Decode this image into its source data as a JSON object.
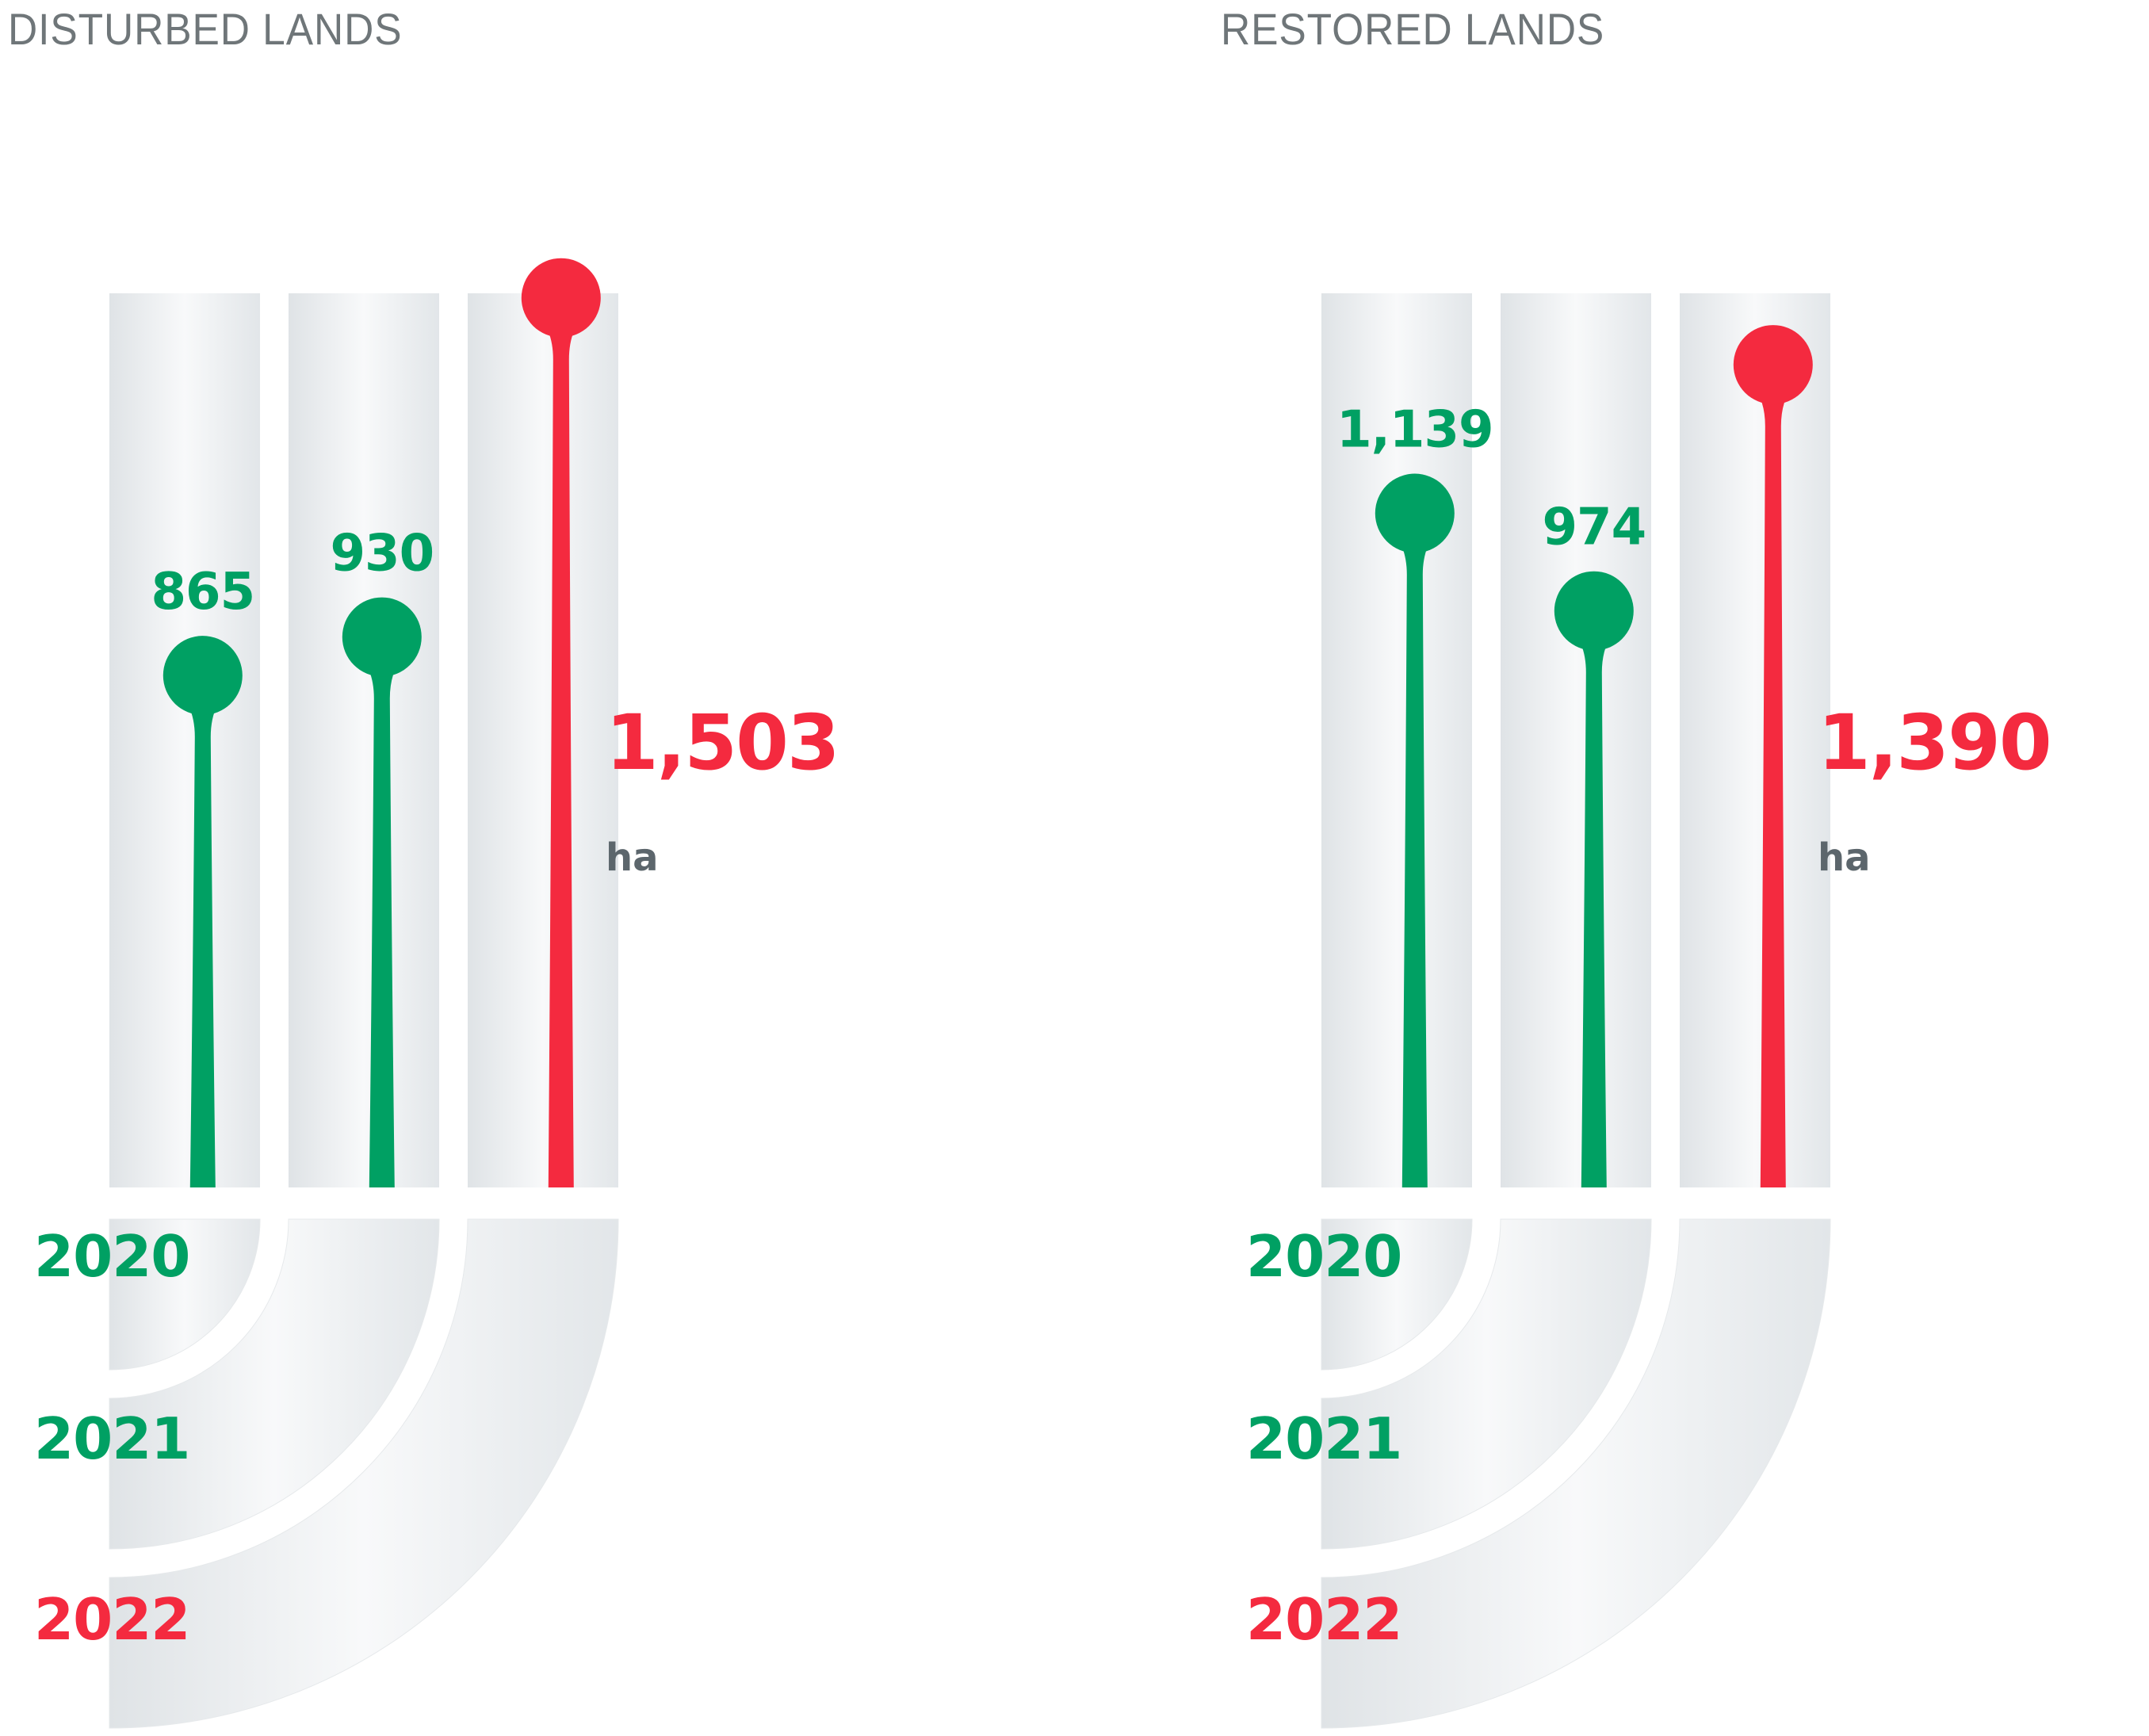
{
  "colors": {
    "green": "#00a063",
    "red": "#f42a3f",
    "title": "#6f7679",
    "unit": "#5c666c",
    "track_light": "#f7f8f9",
    "track_dark": "#dfe3e6"
  },
  "chart_data": [
    {
      "type": "bar",
      "style": "lollipop",
      "title": "DISTURBED LANDS",
      "categories": [
        "2020",
        "2021",
        "2022"
      ],
      "values": [
        865,
        930,
        1503
      ],
      "value_labels": [
        "865",
        "930",
        "1,503"
      ],
      "unit": "ha",
      "highlight_color": "#f42a3f",
      "base_color": "#00a063"
    },
    {
      "type": "bar",
      "style": "lollipop",
      "title": "RESTORED LANDS",
      "categories": [
        "2020",
        "2021",
        "2022"
      ],
      "values": [
        1139,
        974,
        1390
      ],
      "value_labels": [
        "1,139",
        "974",
        "1,390"
      ],
      "unit": "ha",
      "highlight_color": "#f42a3f",
      "base_color": "#00a063"
    }
  ]
}
